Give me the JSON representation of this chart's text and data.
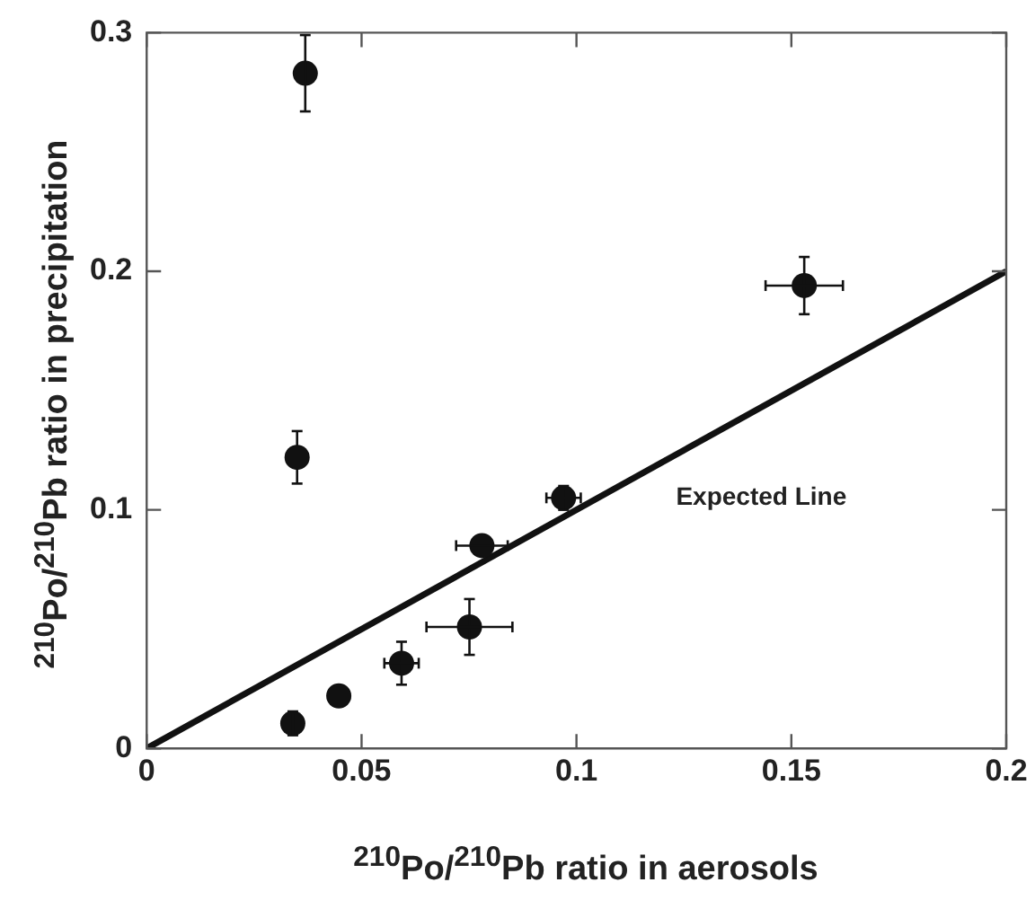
{
  "chart_data": {
    "type": "scatter",
    "xlabel": "$^{210}$Po/$^{210}$Pb ratio in aerosols",
    "ylabel": "$^{210}$Po/$^{210}$Pb ratio in precipitation",
    "xlim": [
      0,
      0.2
    ],
    "xticks": [
      0,
      0.05,
      0.1,
      0.15,
      0.2
    ],
    "ylim": [
      0,
      0.3
    ],
    "yticks": [
      0,
      0.1,
      0.2,
      0.3
    ],
    "grid": false,
    "legend": false,
    "marker": "circle",
    "series": [
      {
        "color": "#111111",
        "x": [
          0.0369,
          0.035,
          0.034,
          0.0447,
          0.0593,
          0.0751,
          0.078,
          0.097,
          0.153
        ],
        "values": [
          0.283,
          0.122,
          0.0105,
          0.022,
          0.0357,
          0.0509,
          0.085,
          0.105,
          0.194
        ],
        "errors": [
          0.016,
          0.011,
          0.005,
          null,
          0.009,
          0.0117,
          null,
          0.005,
          0.012
        ],
        "xerrors": [
          null,
          null,
          null,
          null,
          0.004,
          0.01,
          0.006,
          0.004,
          0.009
        ]
      },
      {
        "type": "line",
        "color": "#111111",
        "line_style": "solid",
        "marker": "none",
        "x": [
          0,
          0.2
        ],
        "values": [
          0,
          0.2
        ]
      }
    ],
    "annotations": [
      "Expected Line"
    ]
  }
}
